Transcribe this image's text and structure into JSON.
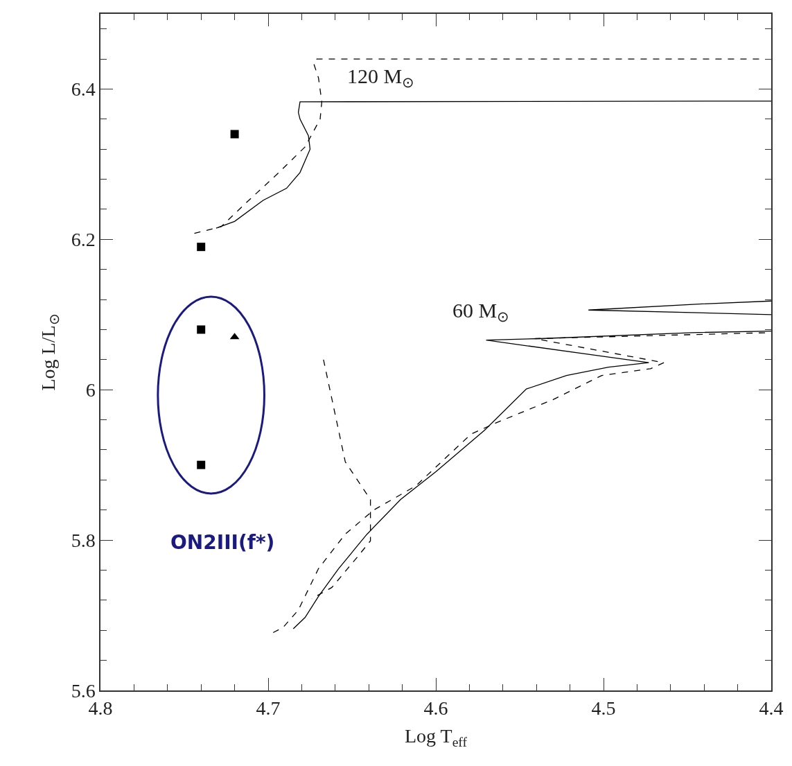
{
  "chart_data": {
    "type": "line",
    "xlabel": "Log T$_{eff}$",
    "ylabel": "Log L/L$_{⊙}$",
    "xlim": [
      4.8,
      4.4
    ],
    "xticks": [
      4.8,
      4.7,
      4.6,
      4.5,
      4.4
    ],
    "ylim": [
      5.6,
      6.5
    ],
    "yticks": [
      5.6,
      5.8,
      {
        "value": 6.0,
        "label": "6"
      },
      6.2,
      6.4
    ],
    "series": [
      {
        "line_style": "solid",
        "color": "#000000",
        "x": [
          4.731,
          4.72,
          4.703,
          4.689,
          4.681,
          4.675,
          4.676,
          4.681,
          4.682,
          4.681,
          4.4
        ],
        "values": [
          6.215,
          6.224,
          6.252,
          6.268,
          6.289,
          6.32,
          6.338,
          6.36,
          6.369,
          6.383,
          6.384
        ]
      },
      {
        "line_style": "dashed",
        "color": "#000000",
        "x": [
          4.744,
          4.728,
          4.713,
          4.695,
          4.678,
          4.669,
          4.668,
          4.67,
          4.673,
          4.671,
          4.404
        ],
        "values": [
          6.208,
          6.217,
          6.249,
          6.286,
          6.323,
          6.36,
          6.383,
          6.415,
          6.435,
          6.44,
          6.44
        ]
      },
      {
        "line_style": "solid",
        "color": "#000000",
        "x": [
          4.685,
          4.678,
          4.67,
          4.658,
          4.641,
          4.621,
          4.6,
          4.571,
          4.546,
          4.522,
          4.497,
          4.473,
          4.57,
          4.538,
          4.447,
          4.4,
          null,
          4.4,
          4.509,
          4.443,
          4.4
        ],
        "values": [
          5.682,
          5.697,
          5.725,
          5.762,
          5.808,
          5.854,
          5.891,
          5.946,
          6.001,
          6.019,
          6.03,
          6.036,
          6.066,
          6.068,
          6.076,
          6.078,
          null,
          6.1,
          6.106,
          6.114,
          6.118
        ]
      },
      {
        "line_style": "dashed",
        "color": "#000000",
        "x": [
          4.697,
          4.691,
          4.682,
          4.67,
          4.654,
          4.637,
          4.612,
          4.579,
          4.563,
          4.53,
          4.501,
          4.472,
          4.464,
          4.541,
          4.4
        ],
        "values": [
          5.677,
          5.684,
          5.707,
          5.762,
          5.808,
          5.84,
          5.872,
          5.941,
          5.957,
          5.987,
          6.019,
          6.028,
          6.036,
          6.068,
          6.076
        ]
      },
      {
        "line_style": "dashed",
        "color": "#000000",
        "x": [
          4.667,
          4.654,
          4.639,
          4.639,
          4.647,
          4.662,
          4.674
        ],
        "values": [
          6.04,
          5.904,
          5.854,
          5.799,
          5.777,
          5.737,
          5.722
        ]
      },
      {
        "type": "scatter",
        "marker": "square",
        "color": "#000000",
        "x": [
          4.72,
          4.74,
          4.74,
          4.74
        ],
        "values": [
          6.34,
          6.19,
          6.08,
          5.9
        ]
      },
      {
        "type": "scatter",
        "marker": "triangle",
        "color": "#000000",
        "x": [
          4.72
        ],
        "values": [
          6.07
        ]
      }
    ],
    "annotations": [
      "120 M$_{⊙}$",
      "60 M$_{⊙}$",
      "ON2III(f*)"
    ]
  }
}
